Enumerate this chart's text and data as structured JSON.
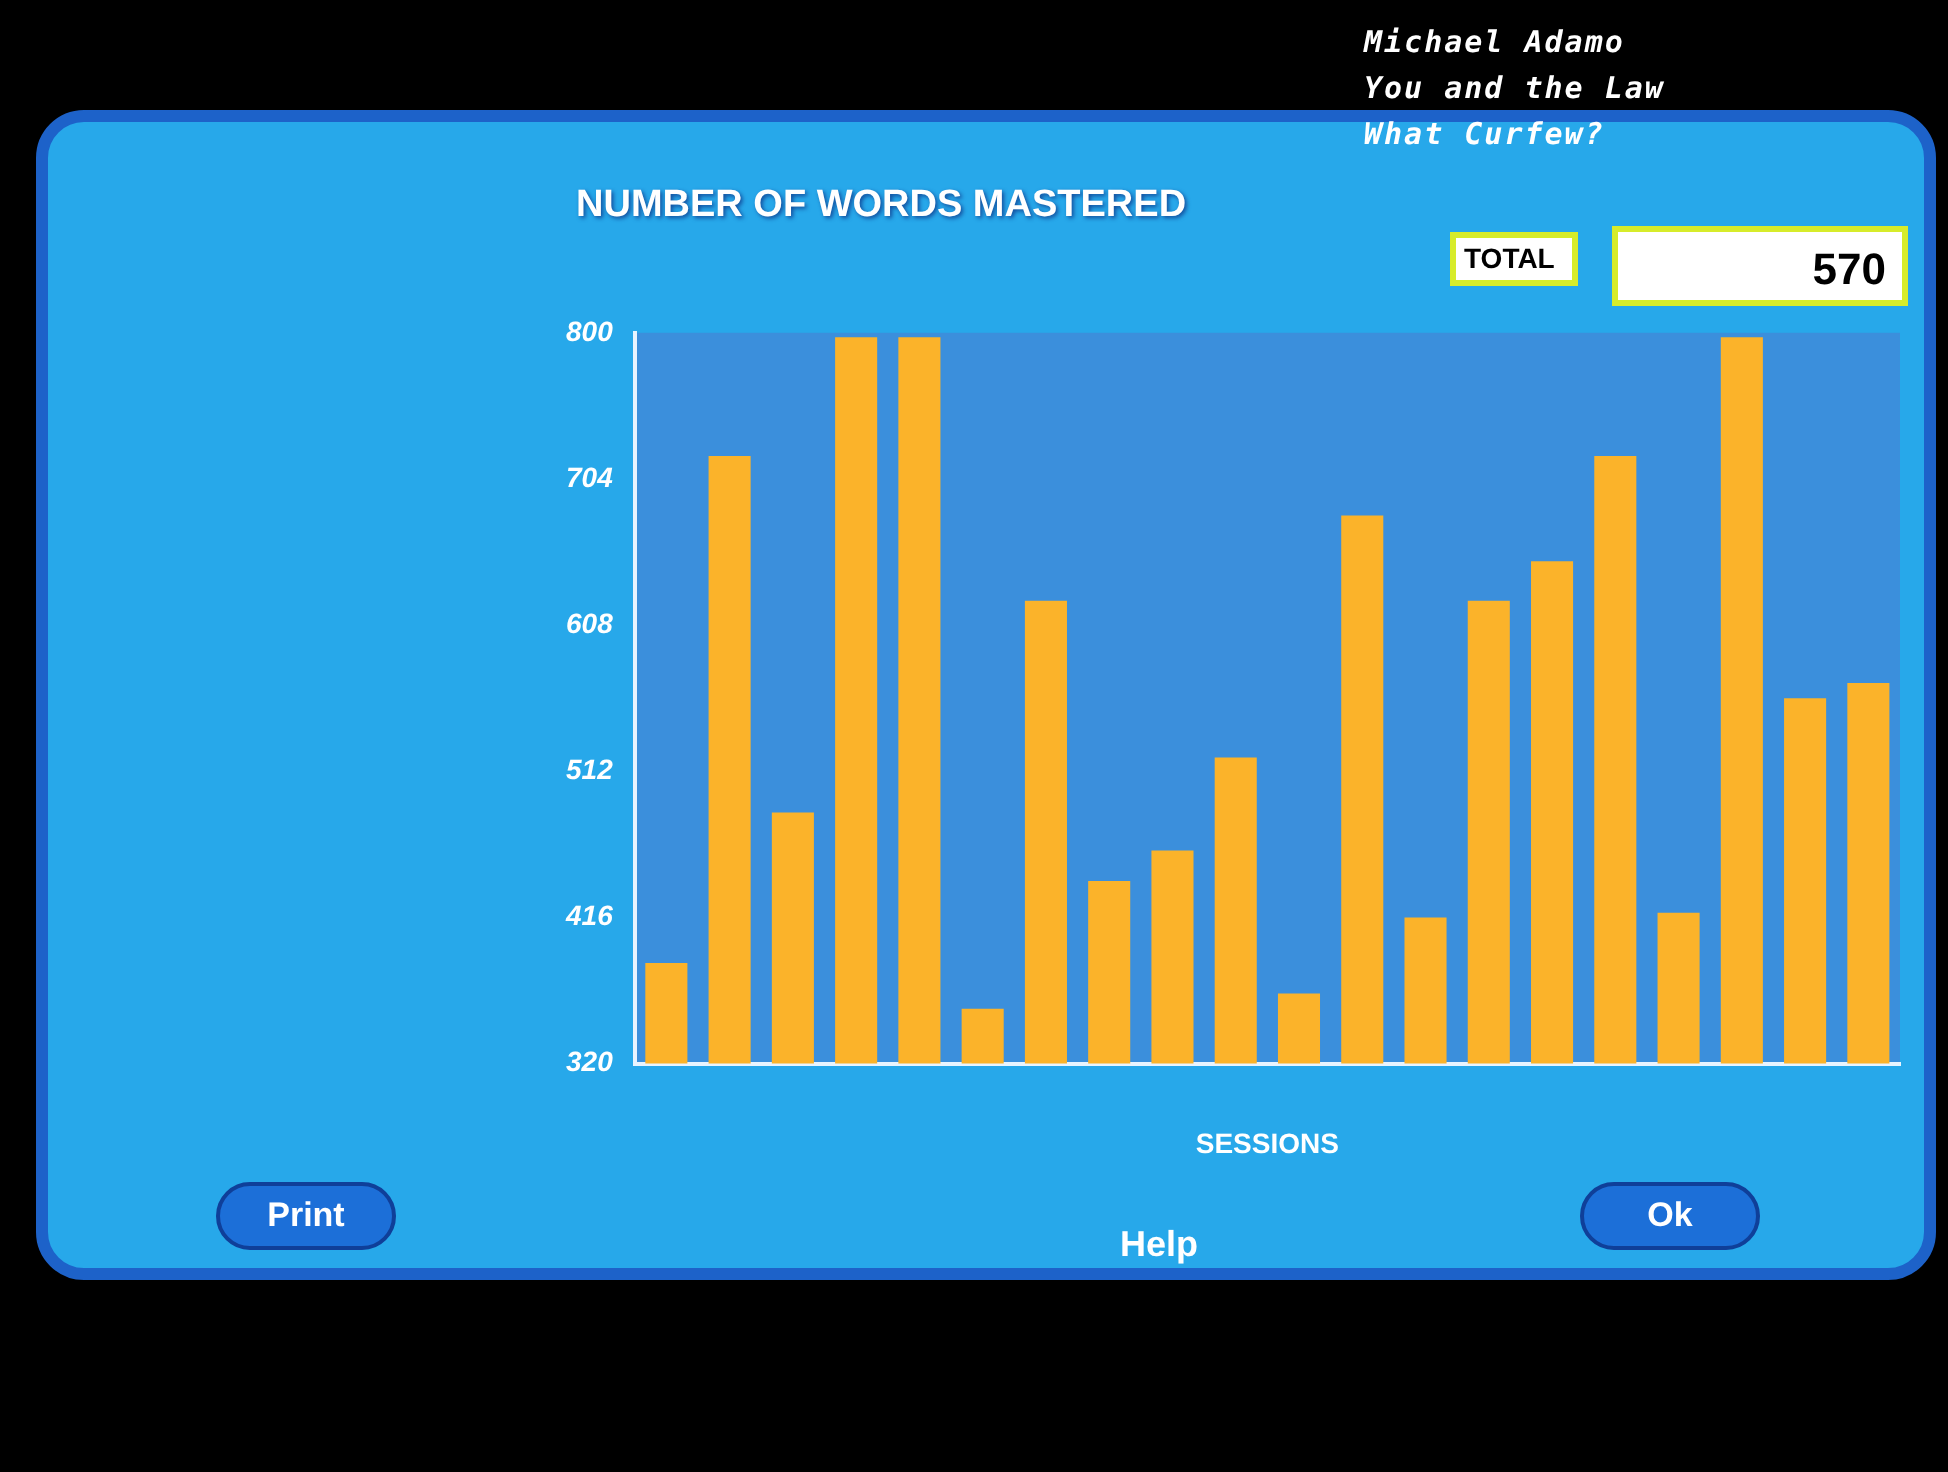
{
  "chart_data": {
    "type": "bar",
    "title": "NUMBER OF WORDS MASTERED",
    "xlabel": "SESSIONS",
    "categories": [
      null,
      null,
      null,
      null,
      null,
      null,
      null,
      null,
      null,
      null,
      null,
      null,
      null,
      null,
      null,
      null,
      null,
      null,
      null,
      null
    ],
    "values": [
      386,
      719,
      485,
      797,
      797,
      356,
      624,
      440,
      460,
      521,
      366,
      680,
      416,
      624,
      650,
      719,
      419,
      797,
      560,
      570
    ],
    "color": "#fbb32a",
    "ylim": [
      320,
      800
    ],
    "yticks": [
      320,
      416,
      512,
      608,
      704,
      800
    ],
    "grid": false,
    "legend": false,
    "annotations": [
      "Michael Adamo",
      "You and the Law",
      "What Curfew?",
      "TOTAL",
      "570",
      "Print",
      "Help",
      "Ok"
    ]
  }
}
